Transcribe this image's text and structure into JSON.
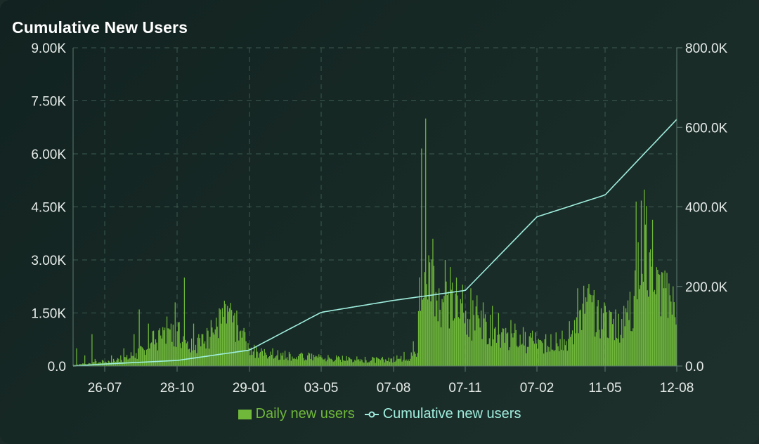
{
  "chart_data": {
    "title": "Cumulative New Users",
    "type": "bar",
    "x_tick_labels": [
      "26-07",
      "28-10",
      "29-01",
      "03-05",
      "07-08",
      "07-11",
      "07-02",
      "11-05",
      "12-08"
    ],
    "y_left_tick_labels": [
      "0.0",
      "1.50K",
      "3.00K",
      "4.50K",
      "6.00K",
      "7.50K",
      "9.00K"
    ],
    "y_right_tick_labels": [
      "0.0",
      "200.0K",
      "400.0K",
      "600.0K",
      "800.0K"
    ],
    "ylim_left": [
      0,
      9000
    ],
    "ylim_right": [
      0,
      800000
    ],
    "grid": true,
    "legend_position": "bottom-center",
    "series": [
      {
        "name": "Daily new users",
        "type": "bar",
        "axis": "left",
        "color": "#6fb83a",
        "points_per_week": "daily values sampled as weekly mean / peak",
        "x": [
          "26-07",
          "28-10",
          "29-01",
          "03-05",
          "07-08",
          "07-11",
          "07-02",
          "11-05",
          "12-08"
        ],
        "weekly_mean": [
          40,
          60,
          80,
          100,
          120,
          150,
          180,
          220,
          300,
          400,
          550,
          700,
          800,
          900,
          950,
          850,
          700,
          650,
          800,
          1000,
          1200,
          1300,
          1100,
          800,
          450,
          400,
          350,
          300,
          300,
          280,
          260,
          250,
          250,
          230,
          220,
          200,
          200,
          190,
          180,
          180,
          170,
          170,
          160,
          170,
          180,
          200,
          220,
          300,
          2000,
          2500,
          2300,
          1900,
          1700,
          1500,
          1400,
          1300,
          1200,
          1100,
          1000,
          900,
          800,
          750,
          700,
          650,
          600,
          600,
          600,
          650,
          700,
          900,
          1400,
          1700,
          1500,
          1300,
          1200,
          1150,
          1200,
          1500,
          2500,
          3500,
          3000,
          2200,
          1900,
          1700
        ],
        "weekly_peak": [
          500,
          300,
          900,
          200,
          150,
          300,
          300,
          500,
          900,
          1600,
          1200,
          1000,
          1100,
          1400,
          1800,
          2500,
          1200,
          900,
          1000,
          1300,
          1600,
          1700,
          1500,
          1000,
          700,
          600,
          500,
          500,
          450,
          430,
          400,
          380,
          380,
          350,
          330,
          310,
          300,
          290,
          280,
          270,
          260,
          260,
          250,
          260,
          270,
          300,
          400,
          700,
          6150,
          7000,
          3600,
          3000,
          2800,
          2500,
          2300,
          2200,
          2000,
          1800,
          1700,
          1500,
          1300,
          1200,
          1100,
          1000,
          950,
          900,
          900,
          950,
          1000,
          1300,
          2200,
          2200,
          2000,
          1800,
          1700,
          1600,
          1700,
          2100,
          4650,
          4000,
          3300,
          2600,
          2200,
          2000
        ]
      },
      {
        "name": "Cumulative new users",
        "type": "line",
        "axis": "right",
        "color": "#9feede",
        "x": [
          "26-07",
          "28-10",
          "29-01",
          "03-05",
          "07-08",
          "07-11",
          "07-02",
          "11-05",
          "12-08"
        ],
        "values": [
          5000,
          14000,
          40000,
          135000,
          165000,
          190000,
          375000,
          430000,
          620000
        ]
      }
    ]
  },
  "legend": {
    "daily_label": "Daily new users",
    "cumulative_label": "Cumulative new users"
  },
  "colors": {
    "bar": "#6fb83a",
    "line": "#9feede",
    "grid": "#3c5a51",
    "background": "#172925"
  }
}
